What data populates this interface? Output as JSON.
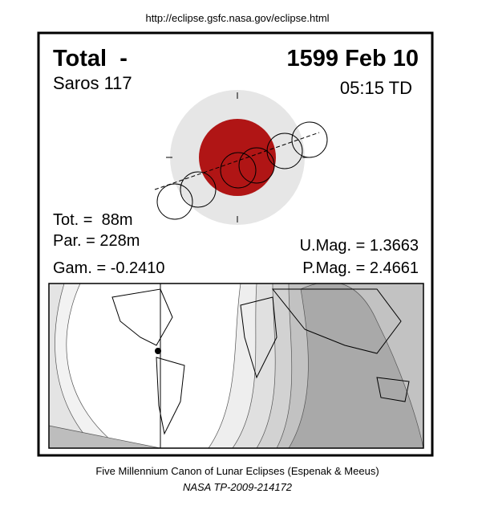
{
  "url": "http://eclipse.gsfc.nasa.gov/eclipse.html",
  "header": {
    "type": "Total  -",
    "date": "1599 Feb 10",
    "saros": "Saros 117",
    "time": "05:15 TD"
  },
  "stats": {
    "tot": "Tot. =  88m",
    "par": "Par. = 228m",
    "gam": "Gam. = -0.2410",
    "umag": "U.Mag. = 1.3663",
    "pmag": "P.Mag. = 2.4661"
  },
  "footer": {
    "line1": "Five Millennium Canon of Lunar Eclipses (Espenak & Meeus)",
    "line2": "NASA TP-2009-214172"
  }
}
